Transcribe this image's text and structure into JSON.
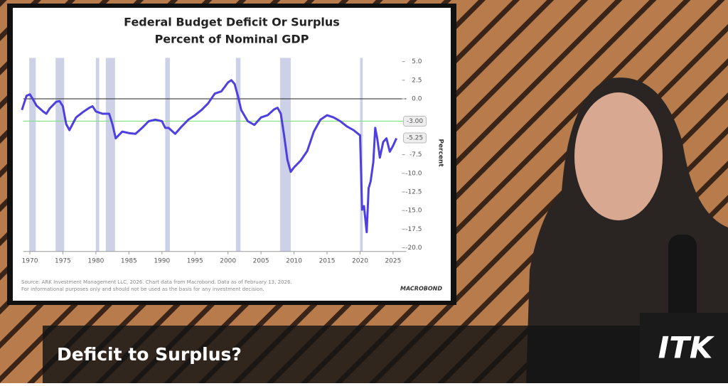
{
  "chart_data": {
    "type": "line",
    "title": "Federal Budget Deficit Or Surplus",
    "subtitle": "Percent of Nominal GDP",
    "y_label": "Percent",
    "source": "Source: ARK Investment Management LLC, 2026. Chart data from Macrobond. Data as of February 13, 2026.",
    "disclaimer": "For informational purposes only and should not be used as the basis for any investment decision.",
    "logo": "MACROBOND",
    "xlim": [
      1969,
      2027
    ],
    "xticks": [
      1970,
      1975,
      1980,
      1985,
      1990,
      1995,
      2000,
      2005,
      2010,
      2015,
      2020,
      2025
    ],
    "ylim": [
      -20.5,
      5.5
    ],
    "yticks": [
      {
        "value": 5,
        "label": "5.0"
      },
      {
        "value": 2.5,
        "label": "2.5"
      },
      {
        "value": 0,
        "label": "0.0"
      },
      {
        "value": -7.5,
        "label": "-7.5"
      },
      {
        "value": -10,
        "label": "-10.0"
      },
      {
        "value": -12.5,
        "label": "-12.5"
      },
      {
        "value": -15,
        "label": "-15.0"
      },
      {
        "value": -17.5,
        "label": "-17.5"
      },
      {
        "value": -20,
        "label": "-20.0"
      }
    ],
    "zero_line": 0,
    "reference_line": {
      "value": -3,
      "label": "-3.00",
      "color": "#7ee27e"
    },
    "last_value_label": {
      "value": -5.25,
      "label": "-5.25"
    },
    "recessions": [
      [
        1969.9,
        1970.9
      ],
      [
        1973.9,
        1975.2
      ],
      [
        1980.0,
        1980.5
      ],
      [
        1981.5,
        1982.9
      ],
      [
        1990.5,
        1991.2
      ],
      [
        2001.2,
        2001.9
      ],
      [
        2007.9,
        2009.5
      ],
      [
        2020.0,
        2020.4
      ]
    ],
    "recession_color": "#cdd1e8",
    "x": [
      1968.8,
      1969.5,
      1970,
      1970.5,
      1971,
      1972,
      1972.5,
      1973,
      1974,
      1974.5,
      1975,
      1975.5,
      1976,
      1977,
      1978,
      1979,
      1979.5,
      1980,
      1981,
      1982,
      1982.5,
      1983,
      1984,
      1985,
      1986,
      1987,
      1988,
      1989,
      1990,
      1990.5,
      1991,
      1992,
      1993,
      1994,
      1995,
      1996,
      1997,
      1998,
      1999,
      2000,
      2000.5,
      2001,
      2001.5,
      2002,
      2003,
      2004,
      2005,
      2006,
      2007,
      2007.5,
      2008,
      2008.5,
      2009,
      2009.5,
      2010,
      2011,
      2012,
      2013,
      2014,
      2015,
      2016,
      2017,
      2018,
      2019,
      2020,
      2020.3,
      2020.6,
      2021,
      2021.3,
      2021.6,
      2022,
      2022.3,
      2022.6,
      2023,
      2023.5,
      2024,
      2024.5,
      2025,
      2025.5
    ],
    "series": [
      {
        "color": "#4d3fe0",
        "values": [
          -1.5,
          0.4,
          0.6,
          -0.1,
          -0.9,
          -1.7,
          -2.0,
          -1.3,
          -0.4,
          -0.3,
          -1.0,
          -3.4,
          -4.2,
          -2.5,
          -1.8,
          -1.2,
          -1.0,
          -1.7,
          -2.0,
          -2.0,
          -3.4,
          -5.3,
          -4.4,
          -4.6,
          -4.7,
          -3.9,
          -3.0,
          -2.8,
          -3.0,
          -3.9,
          -3.9,
          -4.7,
          -3.7,
          -2.8,
          -2.2,
          -1.5,
          -0.6,
          0.7,
          1.0,
          2.2,
          2.5,
          2.0,
          0.4,
          -1.5,
          -3.0,
          -3.5,
          -2.5,
          -2.2,
          -1.4,
          -1.2,
          -2.0,
          -4.9,
          -8.2,
          -9.8,
          -9.2,
          -8.3,
          -7.0,
          -4.4,
          -2.8,
          -2.2,
          -2.5,
          -3.0,
          -3.7,
          -4.2,
          -4.9,
          -14.9,
          -14.4,
          -17.9,
          -12.0,
          -11.1,
          -8.5,
          -3.9,
          -5.3,
          -7.9,
          -5.8,
          -5.3,
          -7.1,
          -6.3,
          -5.3
        ]
      }
    ]
  },
  "caption": "Deficit to Surplus?",
  "brand": "ITK"
}
